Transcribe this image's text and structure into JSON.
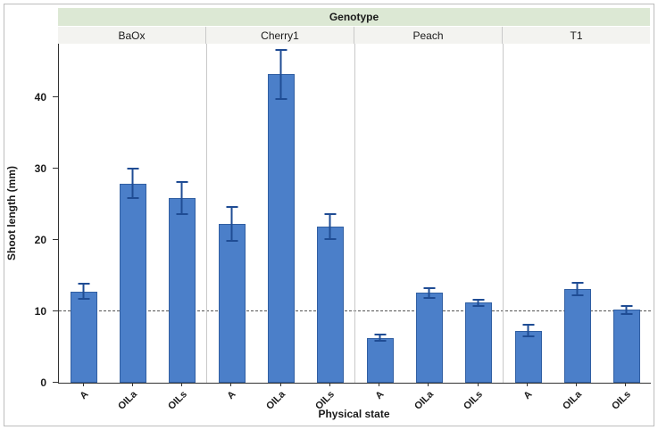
{
  "chart_data": {
    "type": "bar",
    "title": "Genotype",
    "xlabel": "Physical state",
    "ylabel": "Shoot length (mm)",
    "ylim": [
      0,
      47.5
    ],
    "yticks": [
      0,
      10,
      20,
      30,
      40
    ],
    "reference_line": 10,
    "grid": false,
    "legend": "none",
    "categories": [
      "A",
      "OILa",
      "OILs"
    ],
    "groups": [
      {
        "name": "BaOx",
        "values": [
          12.8,
          27.9,
          25.9
        ],
        "errors": [
          1.2,
          2.2,
          2.4
        ]
      },
      {
        "name": "Cherry1",
        "values": [
          22.3,
          43.2,
          21.9
        ],
        "errors": [
          2.5,
          3.6,
          1.9
        ]
      },
      {
        "name": "Peach",
        "values": [
          6.3,
          12.6,
          11.2
        ],
        "errors": [
          0.6,
          0.8,
          0.6
        ]
      },
      {
        "name": "T1",
        "values": [
          7.3,
          13.1,
          10.2
        ],
        "errors": [
          0.9,
          1.0,
          0.7
        ]
      }
    ],
    "colors": {
      "bar": "#4b7fc9",
      "error": "#1f4c94",
      "header_bg": "#dce8d4",
      "subheader_bg": "#f3f3f0",
      "axis": "#333333",
      "reference_line": "#555555"
    }
  }
}
